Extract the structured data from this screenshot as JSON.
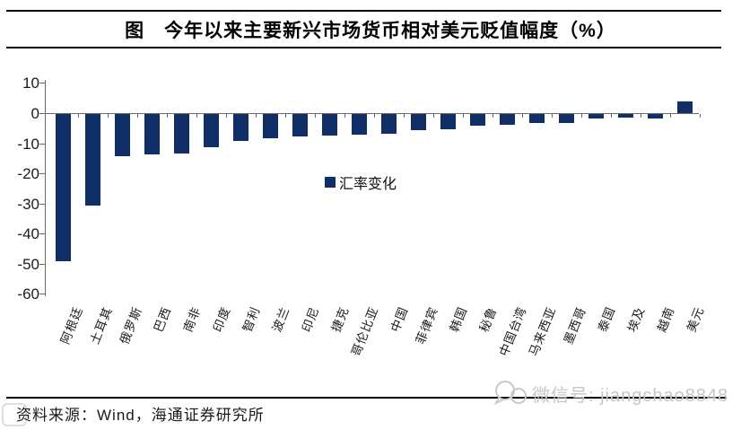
{
  "title": "图　今年以来主要新兴市场货币相对美元贬值幅度（%）",
  "footer": {
    "source": "资料来源：Wind，海通证券研究所"
  },
  "watermark": {
    "text": "微信号: jiangchao8848",
    "icon": "wechat-icon"
  },
  "colors": {
    "bar": "#102e68",
    "axis": "#6b6b6b",
    "rule": "#000000",
    "watermark": "#c6c6c6"
  },
  "chart_data": {
    "type": "bar",
    "title": "图　今年以来主要新兴市场货币相对美元贬值幅度（%）",
    "legend": "汇率变化",
    "legend_position": "center-middle",
    "grid": false,
    "ylim": [
      -60,
      10
    ],
    "yticks": [
      10,
      0,
      -10,
      -20,
      -30,
      -40,
      -50,
      -60
    ],
    "categories": [
      "阿根廷",
      "土耳其",
      "俄罗斯",
      "巴西",
      "南非",
      "印度",
      "智利",
      "波兰",
      "印尼",
      "捷克",
      "哥伦比亚",
      "中国",
      "菲律宾",
      "韩国",
      "秘鲁",
      "中国台湾",
      "马来西亚",
      "墨西哥",
      "泰国",
      "埃及",
      "越南",
      "美元"
    ],
    "values": [
      -49,
      -30.5,
      -14,
      -13.5,
      -13,
      -11,
      -9,
      -8,
      -7.5,
      -7.2,
      -7,
      -6.5,
      -5.5,
      -5,
      -4,
      -3.5,
      -3,
      -3,
      -1.5,
      -1.3,
      -1.5,
      4
    ],
    "xlabel": "",
    "ylabel": ""
  }
}
